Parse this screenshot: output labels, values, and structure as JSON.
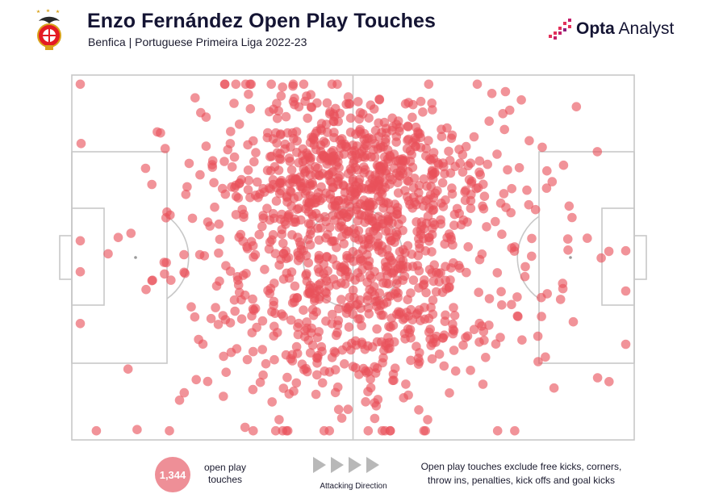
{
  "header": {
    "title": "Enzo Fernández Open Play Touches",
    "subtitle": "Benfica | Portuguese Primeira Liga 2022-23",
    "club_crest": "benfica-crest-icon",
    "brand_name_bold": "Opta",
    "brand_name_light": " Analyst",
    "brand_icon": "opta-bars-icon"
  },
  "legend": {
    "count": "1,344",
    "count_label": "open play touches",
    "direction_label": "Attacking Direction",
    "direction_icon": "play-arrow-icon",
    "footnote": "Open play touches exclude free kicks, corners, throw ins, penalties, kick offs and goal kicks"
  },
  "colors": {
    "touch": "#e8505b",
    "touch_badge": "#ee8f97",
    "pitch_line": "#c8c8c8",
    "title": "#141433",
    "brand_accent": "#e3315a"
  },
  "chart_data": {
    "type": "scatter",
    "coordinate_system": "pitch x 0-100 (left goal line to right goal line, attacking left to right), y 0-100 (top touchline to bottom touchline)",
    "total_touches": 1344,
    "points_shown_approx": true,
    "attacking_direction": "left-to-right",
    "x": [],
    "y": [],
    "clusters": [
      {
        "cx": 45,
        "cy": 30,
        "sx": 11,
        "sy": 12,
        "weight": 0.27
      },
      {
        "cx": 56,
        "cy": 28,
        "sx": 11,
        "sy": 12,
        "weight": 0.25
      },
      {
        "cx": 44,
        "cy": 62,
        "sx": 12,
        "sy": 14,
        "weight": 0.17
      },
      {
        "cx": 56,
        "cy": 63,
        "sx": 11,
        "sy": 14,
        "weight": 0.18
      },
      {
        "cx": 50,
        "cy": 50,
        "sx": 22,
        "sy": 30,
        "weight": 0.1
      },
      {
        "cx": 20,
        "cy": 50,
        "sx": 12,
        "sy": 26,
        "weight": 0.015
      },
      {
        "cx": 84,
        "cy": 55,
        "sx": 9,
        "sy": 28,
        "weight": 0.015
      }
    ]
  }
}
